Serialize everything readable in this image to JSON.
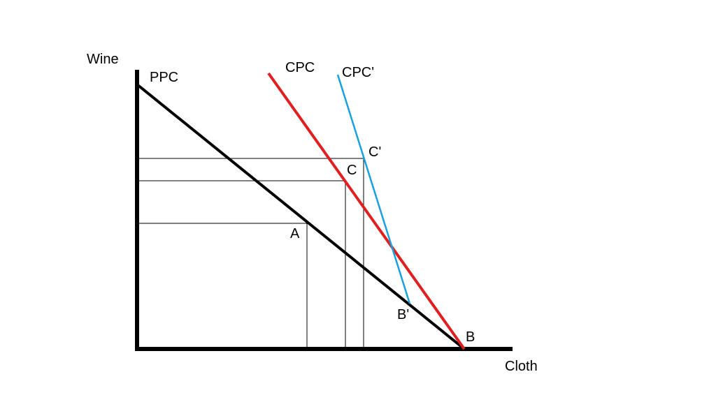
{
  "axes": {
    "y_label": "Wine",
    "x_label": "Cloth"
  },
  "curves": {
    "ppc": {
      "label": "PPC",
      "color": "#000000"
    },
    "cpc": {
      "label": "CPC",
      "color": "#e02020"
    },
    "cpc_prime": {
      "label": "CPC'",
      "color": "#1aa0e0"
    }
  },
  "points": {
    "a": "A",
    "b": "B",
    "c": "C",
    "c_prime": "C'",
    "b_prime": "B'"
  },
  "colors": {
    "axis": "#000000",
    "guide": "#000000",
    "background": "#ffffff"
  }
}
